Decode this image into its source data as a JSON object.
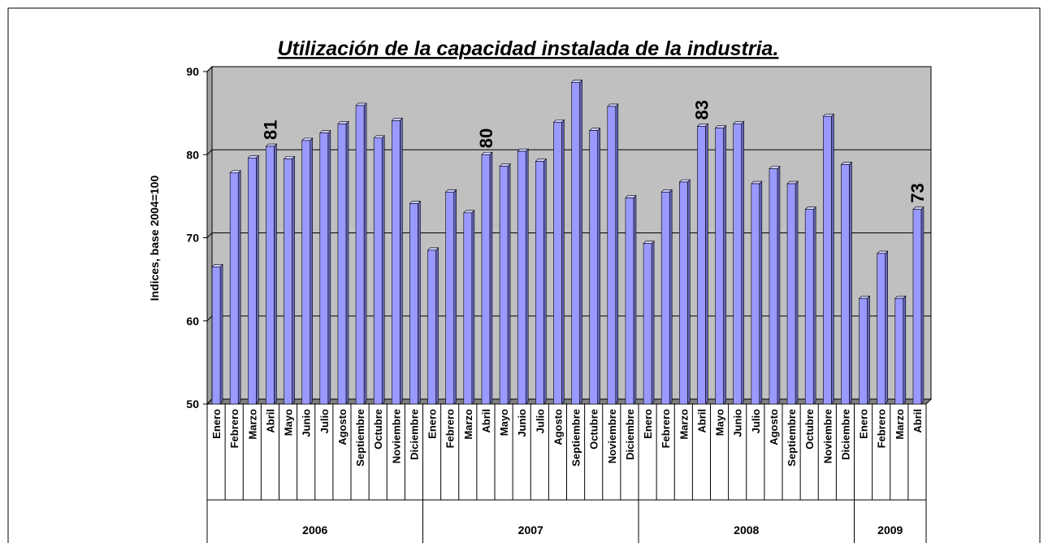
{
  "chart_data": {
    "type": "bar",
    "title": "Utilización de la capacidad instalada de la industria.",
    "y_label": "Indices, base 2004=100",
    "groups": [
      {
        "name": "2006",
        "categories": [
          "Enero",
          "Febrero",
          "Marzo",
          "Abril",
          "Mayo",
          "Junio",
          "Julio",
          "Agosto",
          "Septiembre",
          "Octubre",
          "Noviembre",
          "Diciembre"
        ]
      },
      {
        "name": "2007",
        "categories": [
          "Enero",
          "Febrero",
          "Marzo",
          "Abril",
          "Mayo",
          "Junio",
          "Julio",
          "Agosto",
          "Septiembre",
          "Octubre",
          "Noviembre",
          "Diciembre"
        ]
      },
      {
        "name": "2008",
        "categories": [
          "Enero",
          "Febrero",
          "Marzo",
          "Abril",
          "Mayo",
          "Junio",
          "Julio",
          "Agosto",
          "Septiembre",
          "Octubre",
          "Noviembre",
          "Diciembre"
        ]
      },
      {
        "name": "2009",
        "categories": [
          "Enero",
          "Febrero",
          "Marzo",
          "Abril"
        ]
      }
    ],
    "values": [
      66.5,
      77.8,
      79.6,
      81.0,
      79.5,
      81.7,
      82.6,
      83.7,
      85.9,
      82.0,
      84.1,
      74.1,
      68.5,
      75.5,
      73.0,
      80.0,
      78.6,
      80.4,
      79.2,
      83.9,
      88.7,
      82.9,
      85.8,
      74.8,
      69.3,
      75.5,
      76.7,
      83.4,
      83.2,
      83.7,
      76.5,
      78.3,
      76.5,
      73.4,
      84.6,
      78.8,
      62.7,
      68.1,
      62.7,
      73.4
    ],
    "value_labels": [
      null,
      null,
      null,
      "81",
      null,
      null,
      null,
      null,
      null,
      null,
      null,
      null,
      null,
      null,
      null,
      "80",
      null,
      null,
      null,
      null,
      null,
      null,
      null,
      null,
      null,
      null,
      null,
      "83",
      null,
      null,
      null,
      null,
      null,
      null,
      null,
      null,
      null,
      null,
      null,
      "73"
    ],
    "color": "#9999ff",
    "ylim": [
      50,
      90
    ],
    "yticks": [
      50,
      60,
      70,
      80,
      90
    ],
    "grid": true
  }
}
